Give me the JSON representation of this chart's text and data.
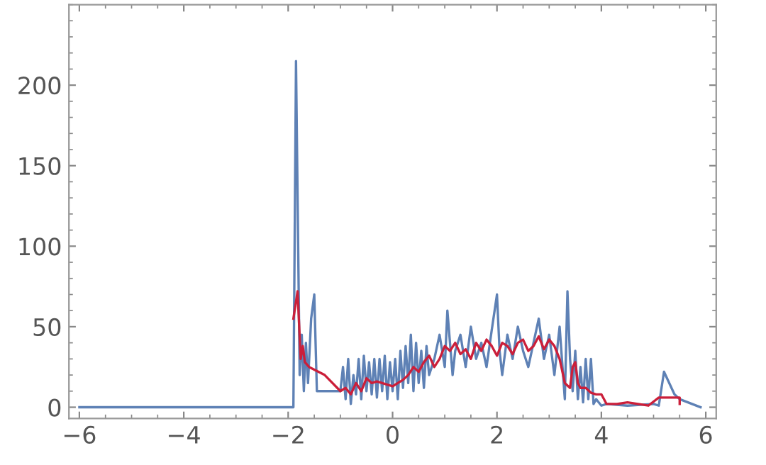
{
  "chart_data": {
    "type": "line",
    "xlim": [
      -6.2,
      6.2
    ],
    "ylim": [
      -7,
      250
    ],
    "xticks": [
      {
        "value": -6,
        "label": "−6"
      },
      {
        "value": -4,
        "label": "−4"
      },
      {
        "value": -2,
        "label": "−2"
      },
      0,
      2,
      4,
      6
    ],
    "yticks": [
      0,
      50,
      100,
      150,
      200
    ],
    "tick_labels": "xy",
    "grid": false,
    "legend": false,
    "marker": "none",
    "line_style": "solid",
    "series": [
      {
        "color": "#5e81b5",
        "x": [
          -6,
          -1.9,
          -1.85,
          -1.78,
          -1.74,
          -1.7,
          -1.66,
          -1.62,
          -1.56,
          -1.5,
          -1.45,
          -1.4,
          -1.0,
          -0.95,
          -0.9,
          -0.85,
          -0.8,
          -0.75,
          -0.7,
          -0.65,
          -0.6,
          -0.55,
          -0.5,
          -0.45,
          -0.4,
          -0.35,
          -0.3,
          -0.25,
          -0.2,
          -0.15,
          -0.1,
          -0.05,
          0,
          0.05,
          0.1,
          0.15,
          0.2,
          0.25,
          0.3,
          0.35,
          0.4,
          0.45,
          0.5,
          0.55,
          0.6,
          0.65,
          0.7,
          0.8,
          0.9,
          1.0,
          1.05,
          1.1,
          1.15,
          1.2,
          1.3,
          1.4,
          1.5,
          1.6,
          1.7,
          1.8,
          1.9,
          2.0,
          2.05,
          2.1,
          2.2,
          2.3,
          2.4,
          2.5,
          2.6,
          2.7,
          2.8,
          2.9,
          3.0,
          3.1,
          3.2,
          3.3,
          3.35,
          3.4,
          3.45,
          3.5,
          3.55,
          3.6,
          3.65,
          3.7,
          3.75,
          3.8,
          3.85,
          3.9,
          3.95,
          4.0,
          4.1,
          4.5,
          5.0,
          5.1,
          5.2,
          5.4,
          5.5,
          5.9
        ],
        "values": [
          0,
          0,
          215,
          20,
          45,
          10,
          40,
          15,
          55,
          70,
          10,
          10,
          10,
          25,
          5,
          30,
          2,
          20,
          8,
          30,
          5,
          32,
          10,
          28,
          8,
          30,
          6,
          30,
          10,
          32,
          5,
          28,
          10,
          30,
          5,
          35,
          12,
          38,
          15,
          45,
          10,
          40,
          15,
          35,
          12,
          38,
          20,
          30,
          45,
          25,
          60,
          40,
          20,
          35,
          45,
          25,
          50,
          30,
          40,
          25,
          48,
          70,
          35,
          20,
          45,
          30,
          50,
          35,
          25,
          40,
          55,
          30,
          45,
          20,
          50,
          5,
          72,
          30,
          10,
          35,
          5,
          25,
          3,
          30,
          5,
          30,
          2,
          5,
          3,
          1,
          2,
          1,
          2,
          1,
          22,
          8,
          5,
          0
        ]
      },
      {
        "color": "#cb1f3a",
        "x": [
          -1.9,
          -1.82,
          -1.76,
          -1.72,
          -1.68,
          -1.6,
          -1.3,
          -1.0,
          -0.9,
          -0.8,
          -0.7,
          -0.6,
          -0.5,
          -0.4,
          -0.3,
          -0.2,
          -0.1,
          0,
          0.1,
          0.2,
          0.3,
          0.4,
          0.5,
          0.6,
          0.7,
          0.8,
          0.9,
          1.0,
          1.1,
          1.2,
          1.3,
          1.4,
          1.5,
          1.6,
          1.7,
          1.8,
          1.9,
          2.0,
          2.1,
          2.2,
          2.3,
          2.4,
          2.5,
          2.6,
          2.7,
          2.8,
          2.9,
          3.0,
          3.1,
          3.2,
          3.3,
          3.4,
          3.45,
          3.5,
          3.55,
          3.6,
          3.7,
          3.8,
          3.9,
          4.0,
          4.1,
          4.3,
          4.5,
          4.7,
          4.9,
          5.1,
          5.5,
          5.5
        ],
        "values": [
          55,
          72,
          30,
          38,
          28,
          25,
          20,
          10,
          12,
          8,
          15,
          10,
          18,
          15,
          16,
          15,
          14,
          13,
          15,
          17,
          20,
          25,
          22,
          28,
          32,
          25,
          30,
          38,
          35,
          40,
          33,
          36,
          30,
          40,
          35,
          42,
          38,
          32,
          40,
          38,
          33,
          40,
          42,
          35,
          38,
          44,
          36,
          42,
          38,
          30,
          15,
          12,
          25,
          28,
          15,
          12,
          12,
          9,
          8,
          8,
          2,
          2,
          3,
          2,
          1,
          6,
          6,
          2
        ]
      }
    ]
  }
}
